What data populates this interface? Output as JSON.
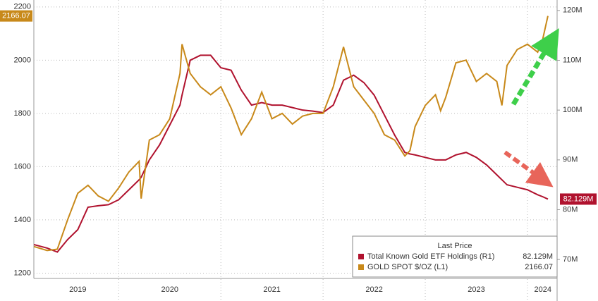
{
  "chart_data": {
    "type": "line",
    "x": [
      2019.17,
      2019.3,
      2019.4,
      2019.5,
      2019.6,
      2019.7,
      2019.8,
      2019.9,
      2020.0,
      2020.1,
      2020.2,
      2020.22,
      2020.3,
      2020.4,
      2020.5,
      2020.6,
      2020.62,
      2020.7,
      2020.8,
      2020.9,
      2021.0,
      2021.1,
      2021.2,
      2021.3,
      2021.4,
      2021.5,
      2021.6,
      2021.7,
      2021.8,
      2021.9,
      2022.0,
      2022.1,
      2022.2,
      2022.3,
      2022.4,
      2022.5,
      2022.6,
      2022.7,
      2022.8,
      2022.85,
      2022.9,
      2023.0,
      2023.1,
      2023.15,
      2023.2,
      2023.3,
      2023.4,
      2023.5,
      2023.6,
      2023.7,
      2023.75,
      2023.8,
      2023.9,
      2024.0,
      2024.1,
      2024.15,
      2024.2
    ],
    "series": [
      {
        "name": "Total Known Gold ETF Holdings (R1)",
        "color": "#b0122e",
        "axis": "y2",
        "last_label": "82.129M",
        "values": [
          73,
          72.3,
          71.5,
          74,
          76,
          80.5,
          80.8,
          81,
          82,
          84,
          86,
          86.5,
          90,
          93,
          97,
          101,
          103,
          110,
          111,
          111,
          108.5,
          108,
          104,
          101,
          101.5,
          101,
          101,
          100.5,
          100,
          99.8,
          99.5,
          101,
          106,
          107,
          105.5,
          103,
          99,
          95,
          91.5,
          91.2,
          91,
          90.5,
          90,
          90,
          90,
          91,
          91.5,
          90.5,
          89,
          87,
          86,
          85,
          84.5,
          84,
          83,
          82.6,
          82.129
        ]
      },
      {
        "name": "GOLD SPOT $/OZ (L1)",
        "color": "#c8891a",
        "axis": "y",
        "values": [
          1300,
          1285,
          1290,
          1400,
          1500,
          1530,
          1490,
          1470,
          1520,
          1580,
          1620,
          1480,
          1700,
          1720,
          1780,
          1950,
          2060,
          1950,
          1900,
          1870,
          1900,
          1820,
          1720,
          1780,
          1880,
          1780,
          1800,
          1760,
          1790,
          1800,
          1800,
          1900,
          2050,
          1900,
          1850,
          1800,
          1720,
          1700,
          1640,
          1660,
          1750,
          1830,
          1870,
          1810,
          1860,
          1990,
          2000,
          1920,
          1950,
          1920,
          1830,
          1980,
          2040,
          2060,
          2030,
          2080,
          2166.07
        ]
      }
    ],
    "ylim": [
      1180,
      2226
    ],
    "yticks": [
      1200,
      1400,
      1600,
      1800,
      2000,
      2200
    ],
    "y2lim": [
      66.2,
      122.1
    ],
    "y2ticks": [
      {
        "value": 70,
        "label": "70M"
      },
      {
        "value": 80,
        "label": "80M"
      },
      {
        "value": 90,
        "label": "90M"
      },
      {
        "value": 100,
        "label": "100M"
      },
      {
        "value": 110,
        "label": "110M"
      },
      {
        "value": 120,
        "label": "120M"
      }
    ],
    "xlim": [
      2019.17,
      2024.29
    ],
    "xticks": [
      {
        "value": 2019.6,
        "label": "2019"
      },
      {
        "value": 2020.5,
        "label": "2020"
      },
      {
        "value": 2021.5,
        "label": "2021"
      },
      {
        "value": 2022.5,
        "label": "2022"
      },
      {
        "value": 2023.5,
        "label": "2023"
      },
      {
        "value": 2024.15,
        "label": "2024"
      }
    ],
    "xgrid": [
      2020,
      2021,
      2022,
      2023,
      2024
    ],
    "grid": true,
    "legend_title": "Last Price"
  }
}
